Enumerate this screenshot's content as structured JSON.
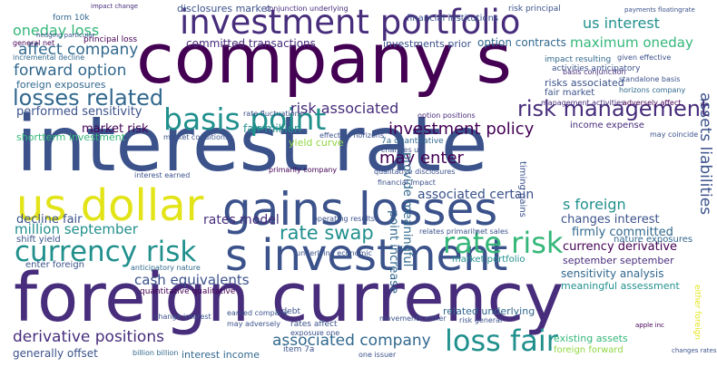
{
  "palette": {
    "purple": "#440154",
    "indigo": "#472d7b",
    "blue": "#3b528b",
    "slate": "#31688e",
    "teal": "#21908d",
    "green": "#35b779",
    "lime": "#90d743",
    "yellow": "#e2e418"
  },
  "words": [
    {
      "text": "company s"
    },
    {
      "text": "interest rate"
    },
    {
      "text": "foreign currency"
    },
    {
      "text": "s investment"
    },
    {
      "text": "gains losses"
    },
    {
      "text": "us dollar"
    },
    {
      "text": "investment portfolio"
    },
    {
      "text": "currency risk"
    },
    {
      "text": "basis point"
    },
    {
      "text": "rate risk"
    },
    {
      "text": "loss fair"
    },
    {
      "text": "losses related"
    },
    {
      "text": "risk management"
    },
    {
      "text": "forward option"
    },
    {
      "text": "affect company"
    },
    {
      "text": "rate swap"
    },
    {
      "text": "derivative positions"
    },
    {
      "text": "associated company"
    },
    {
      "text": "million september"
    },
    {
      "text": "cash equivalents"
    },
    {
      "text": "investment policy"
    },
    {
      "text": "risk associated"
    },
    {
      "text": "may enter"
    },
    {
      "text": "performed sensitivity"
    },
    {
      "text": "oneday loss"
    },
    {
      "text": "us interest"
    },
    {
      "text": "maximum oneday"
    },
    {
      "text": "assets liabilities"
    },
    {
      "text": "currency derivative"
    },
    {
      "text": "s foreign"
    },
    {
      "text": "firmly committed"
    },
    {
      "text": "changes interest"
    },
    {
      "text": "associated certain"
    },
    {
      "text": "rates model"
    },
    {
      "text": "decline fair"
    },
    {
      "text": "committed transactions"
    },
    {
      "text": "investments prior"
    },
    {
      "text": "option contracts"
    },
    {
      "text": "disclosures market"
    },
    {
      "text": "foreign exposures"
    },
    {
      "text": "market risk"
    },
    {
      "text": "shortterm investment"
    },
    {
      "text": "fair million"
    },
    {
      "text": "september september"
    },
    {
      "text": "sensitivity analysis"
    },
    {
      "text": "meaningful assessment"
    },
    {
      "text": "interest income"
    },
    {
      "text": "generally offset"
    },
    {
      "text": "existing assets"
    },
    {
      "text": "foreign forward"
    },
    {
      "text": "shift yield"
    },
    {
      "text": "enter foreign"
    },
    {
      "text": "related underlying"
    },
    {
      "text": "market portfolio"
    },
    {
      "text": "risks associated"
    },
    {
      "text": "fair market"
    },
    {
      "text": "income expense"
    },
    {
      "text": "quantitative qualitative"
    },
    {
      "text": "nature exposures"
    },
    {
      "text": "yield curve"
    },
    {
      "text": "provide meaningful"
    },
    {
      "text": "point increase"
    },
    {
      "text": "financial institutions"
    },
    {
      "text": "principal loss"
    },
    {
      "text": "form 10k"
    },
    {
      "text": "conjunction underlying"
    },
    {
      "text": "risk principal"
    },
    {
      "text": "general net"
    },
    {
      "text": "impact resulting"
    },
    {
      "text": "activities anticipatory"
    },
    {
      "text": "given effective"
    },
    {
      "text": "basis conjunction"
    },
    {
      "text": "standalone basis"
    },
    {
      "text": "horizons company"
    },
    {
      "text": "management activities"
    },
    {
      "text": "adversely affect"
    },
    {
      "text": "rate fluctuations"
    },
    {
      "text": "market conditions"
    },
    {
      "text": "effective horizons"
    },
    {
      "text": "option positions"
    },
    {
      "text": "7a quantitative"
    },
    {
      "text": "changes us"
    },
    {
      "text": "qualitative disclosures"
    },
    {
      "text": "financial impact"
    },
    {
      "text": "relates primarily"
    },
    {
      "text": "net sales"
    },
    {
      "text": "underlying economic"
    },
    {
      "text": "s debt"
    },
    {
      "text": "item 7a"
    },
    {
      "text": "one issuer"
    },
    {
      "text": "billion billion"
    },
    {
      "text": "rates affect"
    },
    {
      "text": "exposure one"
    },
    {
      "text": "earned company"
    },
    {
      "text": "may adversely"
    },
    {
      "text": "incremental decline"
    },
    {
      "text": "interest earned"
    },
    {
      "text": "anticipatory nature"
    },
    {
      "text": "primarily company"
    },
    {
      "text": "operating results"
    },
    {
      "text": "timing gains"
    },
    {
      "text": "may coincide"
    },
    {
      "text": "payments floatingrate"
    },
    {
      "text": "hedging particular"
    },
    {
      "text": "impact change"
    },
    {
      "text": "apple inc"
    },
    {
      "text": "changes rates"
    },
    {
      "text": "either foreign"
    },
    {
      "text": "movements either"
    },
    {
      "text": "change interest"
    },
    {
      "text": "risk general"
    }
  ]
}
